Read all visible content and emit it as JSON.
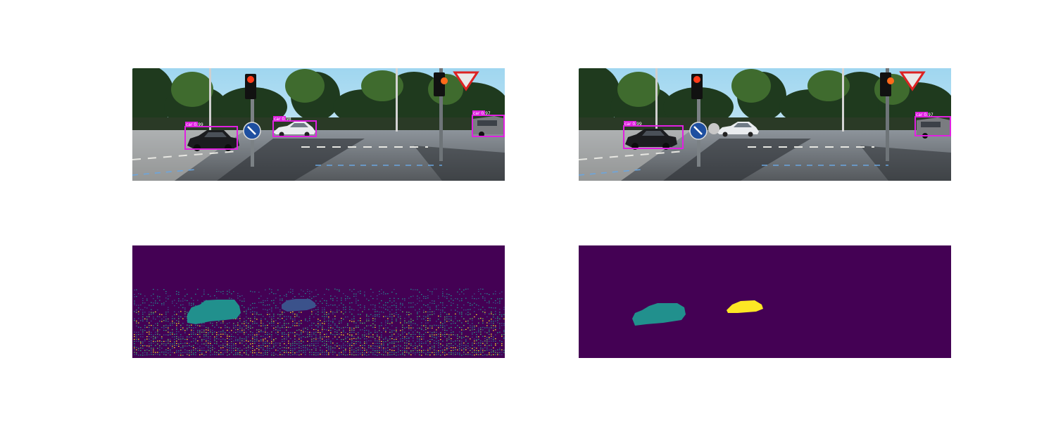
{
  "figure": {
    "panels": [
      {
        "id": "top-left",
        "kind": "camera-frame-with-detections",
        "detections": [
          {
            "label": "car 0.99",
            "box_color": "#e020e0"
          },
          {
            "label": "car 0.98",
            "box_color": "#e020e0"
          },
          {
            "label": "car 0.97",
            "box_color": "#e020e0"
          }
        ]
      },
      {
        "id": "top-right",
        "kind": "camera-frame-with-detections",
        "detections": [
          {
            "label": "car 0.99",
            "box_color": "#e020e0"
          },
          {
            "label": "car 0.97",
            "box_color": "#e020e0"
          }
        ]
      },
      {
        "id": "bottom-left",
        "kind": "sparse-lidar-depth-projection",
        "colormap": "viridis",
        "background": "#440154"
      },
      {
        "id": "bottom-right",
        "kind": "instance-segmentation-mask",
        "colormap": "viridis",
        "background": "#440154",
        "instance_colors": [
          "#21908d",
          "#fde725"
        ]
      }
    ]
  }
}
